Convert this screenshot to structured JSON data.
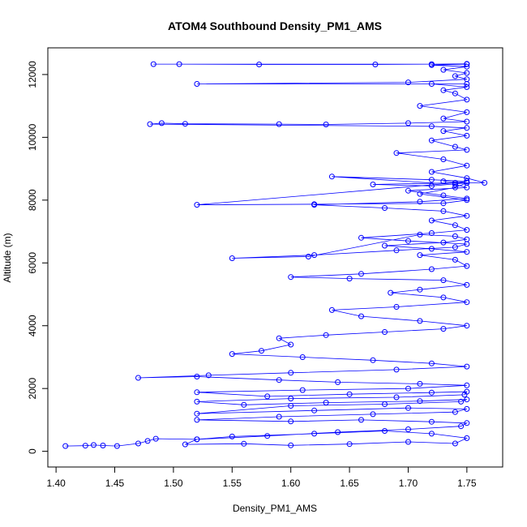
{
  "chart_data": {
    "type": "scatter",
    "title": "ATOM4 Southbound Density_PM1_AMS",
    "xlabel": "Density_PM1_AMS",
    "ylabel": "Altitude (m)",
    "xlim": [
      1.393,
      1.7805
    ],
    "ylim": [
      -500,
      12850
    ],
    "xticks": [
      1.4,
      1.45,
      1.5,
      1.55,
      1.6,
      1.65,
      1.7,
      1.75
    ],
    "yticks": [
      0,
      2000,
      4000,
      6000,
      8000,
      10000,
      12000
    ],
    "xtick_labels": [
      "1.40",
      "1.45",
      "1.50",
      "1.55",
      "1.60",
      "1.65",
      "1.70",
      "1.75"
    ],
    "ytick_labels": [
      "0",
      "2000",
      "4000",
      "6000",
      "8000",
      "10000",
      "12000"
    ],
    "grid": false,
    "legend": "none",
    "marker": "open-circle",
    "line_connected": true,
    "color": "#0000FF",
    "series": [
      {
        "x": [
          1.408,
          1.425,
          1.432,
          1.44,
          1.452,
          1.47,
          1.478,
          1.485,
          1.52,
          1.51,
          1.56,
          1.6,
          1.65,
          1.7,
          1.74,
          1.75,
          1.72,
          1.68,
          1.62,
          1.55,
          1.52,
          1.58,
          1.64,
          1.7,
          1.745,
          1.75,
          1.72,
          1.66,
          1.6,
          1.52,
          1.59,
          1.67,
          1.74,
          1.75,
          1.7,
          1.62,
          1.52,
          1.6,
          1.68,
          1.745,
          1.75,
          1.71,
          1.63,
          1.56,
          1.52,
          1.6,
          1.69,
          1.748,
          1.75,
          1.72,
          1.65,
          1.58,
          1.52,
          1.61,
          1.7,
          1.75,
          1.71,
          1.64,
          1.59,
          1.52,
          1.47,
          1.53,
          1.6,
          1.69,
          1.75,
          1.72,
          1.67,
          1.61,
          1.55,
          1.575,
          1.6,
          1.59,
          1.63,
          1.68,
          1.73,
          1.75,
          1.71,
          1.66,
          1.635,
          1.69,
          1.75,
          1.73,
          1.685,
          1.71,
          1.75,
          1.73,
          1.65,
          1.6,
          1.66,
          1.72,
          1.75,
          1.74,
          1.71,
          1.75,
          1.72,
          1.68,
          1.73,
          1.75,
          1.74,
          1.71,
          1.615,
          1.55,
          1.62,
          1.69,
          1.74,
          1.75,
          1.7,
          1.66,
          1.72,
          1.75,
          1.74,
          1.72,
          1.75,
          1.73,
          1.68,
          1.62,
          1.71,
          1.75,
          1.73,
          1.7,
          1.75,
          1.74,
          1.635,
          1.72,
          1.75,
          1.74,
          1.52,
          1.62,
          1.73,
          1.75,
          1.71,
          1.74,
          1.75,
          1.73,
          1.75,
          1.72,
          1.67,
          1.74,
          1.765,
          1.75,
          1.72,
          1.75,
          1.73,
          1.69,
          1.75,
          1.74,
          1.72,
          1.75,
          1.73,
          1.75,
          1.72,
          1.48,
          1.49,
          1.51,
          1.59,
          1.63,
          1.7,
          1.75,
          1.73,
          1.75,
          1.71,
          1.75,
          1.74,
          1.73,
          1.75,
          1.72,
          1.75,
          1.52,
          1.7,
          1.75,
          1.74,
          1.75,
          1.73,
          1.75,
          1.72,
          1.75,
          1.483,
          1.505,
          1.573,
          1.672,
          1.72,
          1.75
        ],
        "y": [
          170,
          180,
          200,
          185,
          170,
          250,
          330,
          400,
          380,
          220,
          240,
          190,
          230,
          300,
          250,
          420,
          560,
          650,
          560,
          470,
          380,
          490,
          610,
          700,
          800,
          900,
          940,
          1000,
          950,
          1000,
          1100,
          1180,
          1250,
          1350,
          1380,
          1300,
          1200,
          1450,
          1500,
          1580,
          1650,
          1600,
          1550,
          1480,
          1580,
          1680,
          1720,
          1800,
          1900,
          1870,
          1820,
          1750,
          1880,
          1950,
          2000,
          2100,
          2150,
          2200,
          2270,
          2380,
          2340,
          2420,
          2500,
          2600,
          2700,
          2800,
          2900,
          3000,
          3100,
          3200,
          3400,
          3600,
          3700,
          3800,
          3900,
          4000,
          4150,
          4300,
          4500,
          4600,
          4750,
          4900,
          5050,
          5150,
          5300,
          5450,
          5500,
          5550,
          5650,
          5800,
          5900,
          6100,
          6250,
          6350,
          6450,
          6550,
          6650,
          6750,
          6850,
          6900,
          6200,
          6150,
          6250,
          6400,
          6500,
          6600,
          6700,
          6800,
          6950,
          7050,
          7200,
          7350,
          7500,
          7650,
          7750,
          7850,
          7950,
          8050,
          8150,
          8300,
          8400,
          8500,
          8750,
          8650,
          8600,
          8550,
          7850,
          7870,
          7900,
          8000,
          8200,
          8400,
          8550,
          8600,
          8550,
          8450,
          8500,
          8550,
          8550,
          8700,
          8900,
          9100,
          9300,
          9500,
          9600,
          9700,
          9900,
          10050,
          10200,
          10300,
          10350,
          10420,
          10450,
          10430,
          10420,
          10410,
          10450,
          10500,
          10600,
          10800,
          11000,
          11200,
          11400,
          11500,
          11600,
          11700,
          11700,
          11700,
          11750,
          11850,
          11950,
          12050,
          12150,
          12250,
          12300,
          12330,
          12330,
          12330,
          12320,
          12320,
          12330,
          12340
        ]
      }
    ]
  }
}
